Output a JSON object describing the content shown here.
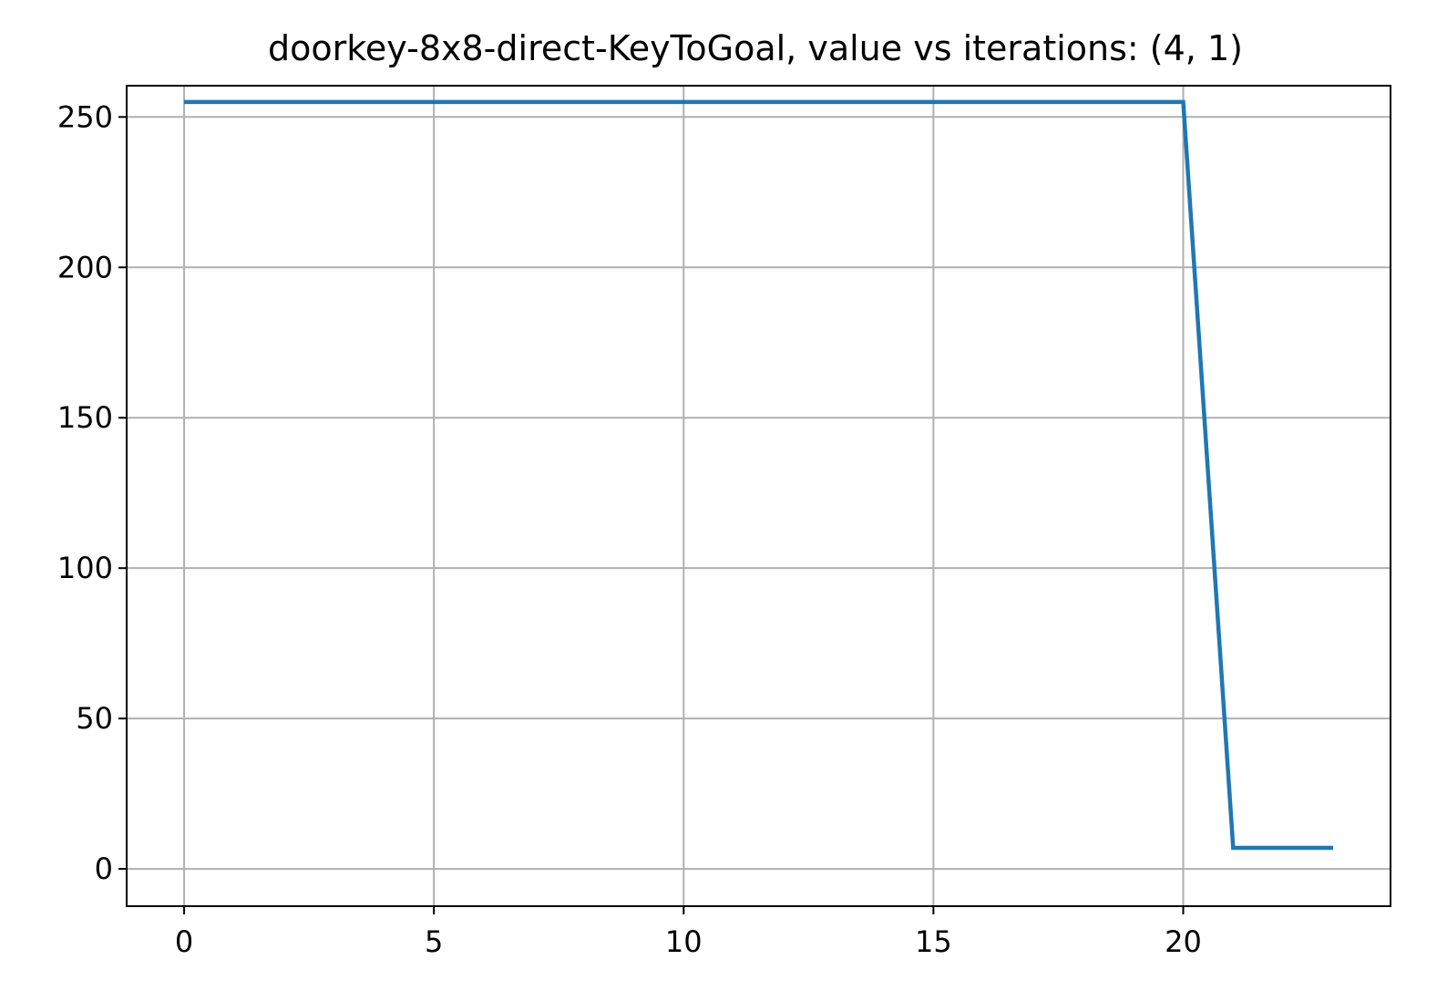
{
  "chart_data": {
    "type": "line",
    "title": "doorkey-8x8-direct-KeyToGoal, value vs iterations: (4, 1)",
    "xlabel": "",
    "ylabel": "",
    "xlim": [
      -1.15,
      24.15
    ],
    "ylim": [
      -12.4,
      260.4
    ],
    "grid": true,
    "xticks": [
      0,
      5,
      10,
      15,
      20
    ],
    "xtick_labels": [
      "0",
      "5",
      "10",
      "15",
      "20"
    ],
    "yticks": [
      0,
      50,
      100,
      150,
      200,
      250
    ],
    "ytick_labels": [
      "0",
      "50",
      "100",
      "150",
      "200",
      "250"
    ],
    "series": [
      {
        "name": "value",
        "color": "#1f77b4",
        "x": [
          0,
          1,
          2,
          3,
          4,
          5,
          6,
          7,
          8,
          9,
          10,
          11,
          12,
          13,
          14,
          15,
          16,
          17,
          18,
          19,
          20,
          21,
          22,
          23
        ],
        "y": [
          255,
          255,
          255,
          255,
          255,
          255,
          255,
          255,
          255,
          255,
          255,
          255,
          255,
          255,
          255,
          255,
          255,
          255,
          255,
          255,
          255,
          7,
          7,
          7
        ]
      }
    ]
  }
}
